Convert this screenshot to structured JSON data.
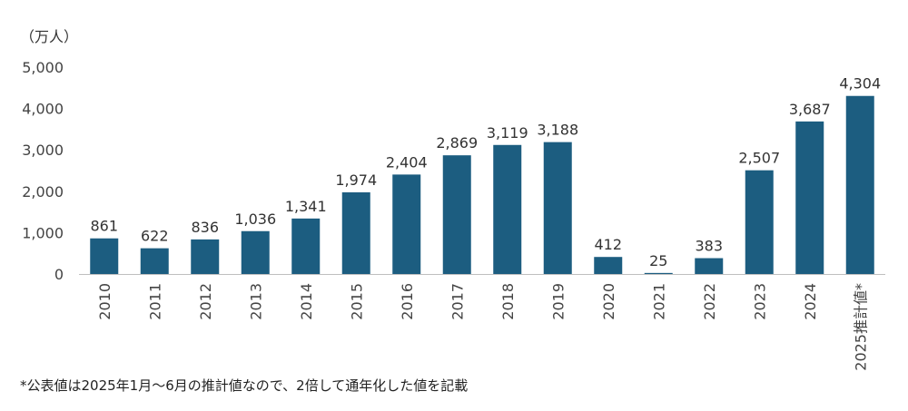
{
  "chart_data": {
    "type": "bar",
    "unit_label": "（万人）",
    "categories": [
      "2010",
      "2011",
      "2012",
      "2013",
      "2014",
      "2015",
      "2016",
      "2017",
      "2018",
      "2019",
      "2020",
      "2021",
      "2022",
      "2023",
      "2024",
      "2025推計値*"
    ],
    "values": [
      861,
      622,
      836,
      1036,
      1341,
      1974,
      2404,
      2869,
      3119,
      3188,
      412,
      25,
      383,
      2507,
      3687,
      4304
    ],
    "value_labels": [
      "861",
      "622",
      "836",
      "1,036",
      "1,341",
      "1,974",
      "2,404",
      "2,869",
      "3,119",
      "3,188",
      "412",
      "25",
      "383",
      "2,507",
      "3,687",
      "4,304"
    ],
    "ylim": [
      0,
      5000
    ],
    "yticks": [
      0,
      1000,
      2000,
      3000,
      4000,
      5000
    ],
    "ytick_labels": [
      "0",
      "1,000",
      "2,000",
      "3,000",
      "4,000",
      "5,000"
    ],
    "grid": false,
    "bar_color": "#1c5d80",
    "footnote": "*公表値は2025年1月～6月の推計値なので、2倍して通年化した値を記載"
  }
}
